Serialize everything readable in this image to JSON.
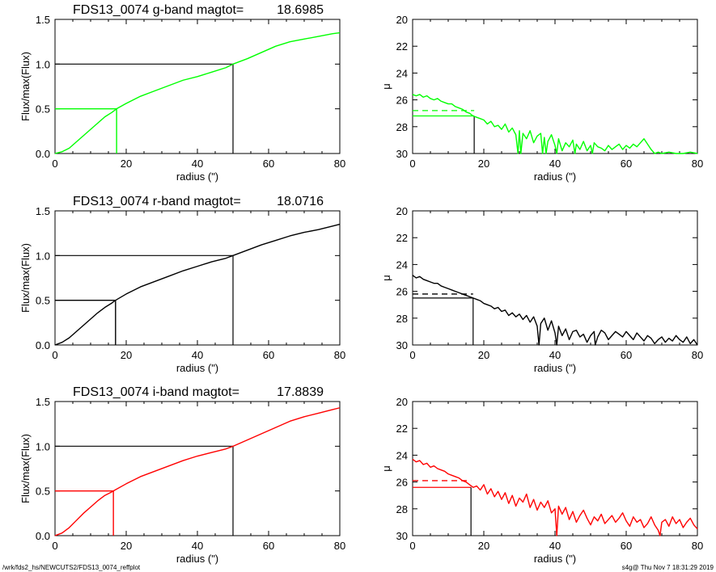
{
  "footer": {
    "left": "/wrk/fds2_hs/NEWCUTS2/FDS13_0074_reffplot",
    "right": "s4g@  Thu Nov  7 18:31:29 2019"
  },
  "colors": {
    "g": "#00ff00",
    "r": "#000000",
    "i": "#ff0000",
    "frame": "#000000"
  },
  "chart_data": [
    {
      "type": "line",
      "band": "g",
      "title_prefix": "FDS13_0074 g-band  magtot=",
      "magtot": "18.6985",
      "xlabel": "radius (\")",
      "ylabel": "Flux/max(Flux)",
      "xlim": [
        0,
        80
      ],
      "ylim": [
        0,
        1.5
      ],
      "xticks": [
        0,
        20,
        40,
        60,
        80
      ],
      "yticks": [
        "0.0",
        "0.5",
        "1.0",
        "1.5"
      ],
      "ref_lines": {
        "half_radius": 17.3,
        "half_flux": 0.5,
        "max_radius": 50,
        "max_flux": 1.0
      },
      "x": [
        0,
        2,
        4,
        6,
        8,
        10,
        12,
        14,
        16,
        17.3,
        20,
        24,
        28,
        32,
        36,
        40,
        44,
        48,
        50,
        54,
        58,
        62,
        66,
        70,
        74,
        78,
        80
      ],
      "y": [
        0.0,
        0.02,
        0.06,
        0.13,
        0.2,
        0.27,
        0.34,
        0.41,
        0.46,
        0.5,
        0.56,
        0.64,
        0.7,
        0.76,
        0.82,
        0.86,
        0.91,
        0.96,
        1.0,
        1.06,
        1.13,
        1.2,
        1.25,
        1.28,
        1.31,
        1.34,
        1.35
      ]
    },
    {
      "type": "line",
      "band": "g",
      "xlabel": "radius (\")",
      "ylabel": "μ",
      "xlim": [
        0,
        80
      ],
      "ylim": [
        30,
        20
      ],
      "xticks": [
        0,
        20,
        40,
        60,
        80
      ],
      "yticks": [
        20,
        22,
        24,
        26,
        28,
        30
      ],
      "ref_lines": {
        "radius": 17.3,
        "mu_solid": 27.2,
        "mu_dashed": 26.8
      },
      "x": [
        0,
        1,
        2,
        3,
        4,
        5,
        6,
        7,
        8,
        9,
        10,
        11,
        12,
        13,
        14,
        15,
        16,
        17,
        18,
        19,
        20,
        21,
        22,
        23,
        24,
        25,
        26,
        27,
        28,
        29,
        29.6,
        30,
        30.4,
        31,
        32,
        33,
        34,
        35,
        36,
        36.5,
        37,
        37.5,
        38,
        39,
        40,
        40.5,
        41,
        42,
        43,
        44,
        45,
        45.6,
        46,
        47,
        48,
        49,
        50,
        50.5,
        51,
        52,
        53,
        54,
        55,
        56,
        57,
        58,
        59,
        60,
        61,
        62,
        63,
        64,
        65,
        66,
        67,
        68,
        69,
        70,
        72,
        74,
        76,
        78,
        80
      ],
      "y": [
        25.6,
        25.7,
        25.6,
        25.8,
        25.7,
        25.9,
        26.0,
        25.9,
        26.1,
        26.2,
        26.3,
        26.3,
        26.5,
        26.6,
        26.7,
        26.9,
        27.0,
        27.2,
        27.3,
        27.4,
        27.5,
        27.8,
        27.6,
        28.0,
        27.9,
        28.2,
        27.8,
        28.4,
        28.1,
        28.6,
        30.0,
        28.3,
        30.0,
        28.5,
        28.9,
        28.3,
        29.2,
        28.7,
        28.5,
        30.0,
        28.8,
        30.0,
        29.1,
        28.6,
        29.4,
        30.0,
        28.9,
        29.8,
        29.2,
        29.5,
        29.0,
        30.0,
        29.3,
        29.7,
        29.1,
        29.8,
        29.4,
        30.0,
        29.2,
        29.5,
        29.6,
        29.8,
        29.4,
        29.7,
        29.5,
        29.3,
        29.7,
        29.4,
        29.6,
        29.3,
        29.5,
        29.2,
        28.9,
        29.3,
        29.7,
        30.0,
        29.9,
        30.0,
        29.9,
        30.0,
        30.0,
        29.9,
        30.0
      ]
    },
    {
      "type": "line",
      "band": "r",
      "title_prefix": "FDS13_0074 r-band  magtot=",
      "magtot": "18.0716",
      "xlabel": "radius (\")",
      "ylabel": "Flux/max(Flux)",
      "xlim": [
        0,
        80
      ],
      "ylim": [
        0,
        1.5
      ],
      "xticks": [
        0,
        20,
        40,
        60,
        80
      ],
      "yticks": [
        "0.0",
        "0.5",
        "1.0",
        "1.5"
      ],
      "ref_lines": {
        "half_radius": 17.0,
        "half_flux": 0.5,
        "max_radius": 50,
        "max_flux": 1.0
      },
      "x": [
        0,
        2,
        4,
        6,
        8,
        10,
        12,
        14,
        16,
        17,
        20,
        24,
        28,
        32,
        36,
        40,
        44,
        48,
        50,
        54,
        58,
        62,
        66,
        70,
        74,
        78,
        80
      ],
      "y": [
        0.0,
        0.03,
        0.08,
        0.15,
        0.22,
        0.29,
        0.36,
        0.42,
        0.47,
        0.5,
        0.57,
        0.65,
        0.71,
        0.77,
        0.83,
        0.88,
        0.93,
        0.97,
        1.0,
        1.06,
        1.12,
        1.17,
        1.22,
        1.26,
        1.29,
        1.33,
        1.35
      ]
    },
    {
      "type": "line",
      "band": "r",
      "xlabel": "radius (\")",
      "ylabel": "μ",
      "xlim": [
        0,
        80
      ],
      "ylim": [
        30,
        20
      ],
      "xticks": [
        0,
        20,
        40,
        60,
        80
      ],
      "yticks": [
        20,
        22,
        24,
        26,
        28,
        30
      ],
      "ref_lines": {
        "radius": 17.0,
        "mu_solid": 26.5,
        "mu_dashed": 26.2
      },
      "x": [
        0,
        1,
        2,
        3,
        4,
        5,
        6,
        7,
        8,
        9,
        10,
        11,
        12,
        13,
        14,
        15,
        16,
        17,
        18,
        19,
        20,
        21,
        22,
        23,
        24,
        25,
        26,
        27,
        28,
        29,
        30,
        31,
        32,
        33,
        34,
        35,
        35.5,
        36,
        37,
        38,
        39,
        40,
        40.5,
        41,
        42,
        43,
        44,
        45,
        46,
        47,
        48,
        49,
        50,
        51,
        51.3,
        52,
        53,
        54,
        55,
        56,
        57,
        58,
        59,
        60,
        61,
        62,
        63,
        64,
        65,
        66,
        67,
        68,
        69,
        70,
        71,
        72,
        73,
        74,
        75,
        76,
        77,
        78,
        79,
        80
      ],
      "y": [
        24.8,
        25.0,
        24.9,
        25.1,
        25.2,
        25.3,
        25.4,
        25.4,
        25.6,
        25.7,
        25.8,
        25.9,
        26.0,
        26.1,
        26.2,
        26.3,
        26.4,
        26.5,
        26.6,
        26.7,
        26.9,
        27.0,
        27.1,
        27.3,
        27.2,
        27.5,
        27.4,
        27.8,
        27.6,
        27.9,
        27.7,
        28.1,
        27.8,
        28.3,
        27.9,
        28.6,
        30.0,
        28.4,
        28.0,
        28.9,
        28.2,
        29.1,
        30.0,
        28.6,
        29.3,
        28.8,
        29.6,
        29.0,
        28.9,
        29.4,
        29.2,
        29.8,
        29.3,
        29.0,
        30.0,
        29.4,
        28.9,
        29.1,
        29.6,
        29.3,
        29.0,
        29.2,
        29.4,
        29.0,
        29.3,
        29.6,
        29.1,
        29.4,
        29.7,
        29.3,
        29.5,
        29.9,
        29.6,
        29.4,
        29.8,
        29.5,
        29.7,
        29.3,
        29.6,
        29.8,
        29.4,
        29.9,
        29.6,
        30.0
      ]
    },
    {
      "type": "line",
      "band": "i",
      "title_prefix": "FDS13_0074 i-band  magtot=",
      "magtot": "17.8839",
      "xlabel": "radius (\")",
      "ylabel": "Flux/max(Flux)",
      "xlim": [
        0,
        80
      ],
      "ylim": [
        0,
        1.5
      ],
      "xticks": [
        0,
        20,
        40,
        60,
        80
      ],
      "yticks": [
        "0.0",
        "0.5",
        "1.0",
        "1.5"
      ],
      "ref_lines": {
        "half_radius": 16.4,
        "half_flux": 0.5,
        "max_radius": 50,
        "max_flux": 1.0
      },
      "x": [
        0,
        2,
        4,
        6,
        8,
        10,
        12,
        14,
        16,
        16.4,
        20,
        24,
        28,
        32,
        36,
        40,
        44,
        48,
        50,
        54,
        58,
        62,
        66,
        70,
        74,
        78,
        80
      ],
      "y": [
        0.0,
        0.03,
        0.09,
        0.17,
        0.25,
        0.32,
        0.39,
        0.45,
        0.49,
        0.5,
        0.58,
        0.66,
        0.72,
        0.78,
        0.84,
        0.89,
        0.93,
        0.97,
        1.0,
        1.07,
        1.14,
        1.21,
        1.28,
        1.33,
        1.37,
        1.41,
        1.43
      ]
    },
    {
      "type": "line",
      "band": "i",
      "xlabel": "radius (\")",
      "ylabel": "μ",
      "xlim": [
        0,
        80
      ],
      "ylim": [
        30,
        20
      ],
      "xticks": [
        0,
        20,
        40,
        60,
        80
      ],
      "yticks": [
        20,
        22,
        24,
        26,
        28,
        30
      ],
      "ref_lines": {
        "radius": 16.4,
        "mu_solid": 26.4,
        "mu_dashed": 25.9
      },
      "x": [
        0,
        1,
        2,
        3,
        4,
        5,
        6,
        7,
        8,
        9,
        10,
        11,
        12,
        13,
        14,
        15,
        16,
        17,
        18,
        19,
        20,
        21,
        22,
        23,
        24,
        25,
        26,
        27,
        28,
        29,
        30,
        31,
        32,
        33,
        34,
        35,
        36,
        37,
        38,
        39,
        40,
        40.5,
        41,
        42,
        43,
        44,
        45,
        46,
        47,
        48,
        49,
        50,
        51,
        52,
        53,
        54,
        55,
        56,
        57,
        58,
        59,
        60,
        61,
        62,
        63,
        64,
        65,
        66,
        67,
        68,
        69,
        69.5,
        70,
        71,
        72,
        73,
        74,
        75,
        76,
        77,
        78,
        79,
        80
      ],
      "y": [
        24.3,
        24.5,
        24.4,
        24.7,
        24.6,
        24.9,
        24.8,
        25.0,
        25.1,
        25.2,
        25.4,
        25.5,
        25.6,
        25.7,
        25.9,
        26.0,
        26.2,
        26.4,
        26.3,
        26.6,
        26.2,
        26.9,
        26.5,
        27.1,
        26.7,
        27.3,
        26.8,
        27.6,
        27.0,
        27.8,
        27.2,
        27.5,
        26.9,
        27.9,
        27.3,
        28.1,
        27.5,
        27.9,
        27.4,
        28.3,
        28.0,
        30.0,
        27.8,
        28.4,
        27.9,
        28.8,
        28.2,
        29.0,
        28.5,
        28.1,
        28.7,
        29.2,
        28.6,
        28.9,
        28.4,
        29.1,
        28.8,
        28.5,
        29.0,
        28.7,
        28.3,
        28.9,
        29.3,
        28.6,
        29.0,
        28.8,
        29.4,
        29.1,
        28.6,
        29.2,
        29.6,
        30.0,
        29.0,
        28.8,
        29.3,
        28.6,
        29.1,
        28.8,
        29.4,
        29.0,
        28.7,
        29.2,
        29.5
      ]
    }
  ]
}
